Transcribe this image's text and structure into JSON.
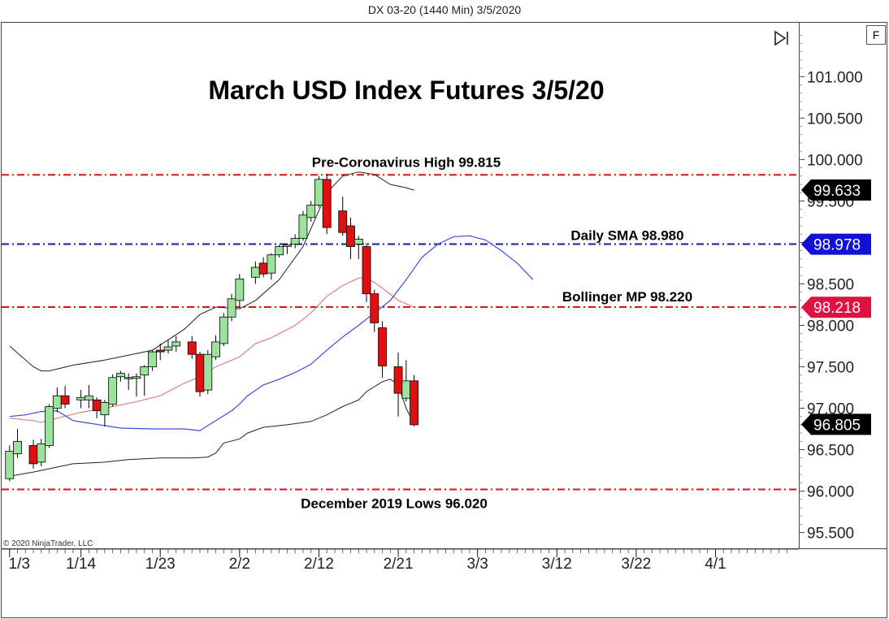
{
  "header": {
    "instrument": "DX 03-20 (1440 Min)  3/5/2020"
  },
  "controls": {
    "format_button": "F",
    "skip_icon": "skip-to-end-icon"
  },
  "copyright": "© 2020 NinjaTrader, LLC",
  "colors": {
    "up_fill": "#9be29b",
    "down_fill": "#e01010",
    "red_line": "#e01010",
    "blue_line": "#1a1aa8",
    "sma": "#3a4ee0",
    "bollinger_mid": "#e08080",
    "bollinger_band": "#222222"
  },
  "chart_data": {
    "type": "candlestick",
    "title": "March USD Index Futures 3/5/20",
    "y_range": [
      95.3,
      101.65
    ],
    "y_ticks": [
      "101.000",
      "100.500",
      "100.000",
      "99.500",
      "99.000",
      "98.500",
      "98.000",
      "97.500",
      "97.000",
      "96.500",
      "96.000",
      "95.500"
    ],
    "y_tick_values": [
      101.0,
      100.5,
      100.0,
      99.5,
      99.0,
      98.5,
      98.0,
      97.5,
      97.0,
      96.5,
      96.0,
      95.5
    ],
    "x_ticks": [
      {
        "label": "1/3",
        "day": 0
      },
      {
        "label": "1/14",
        "day": 9
      },
      {
        "label": "1/23",
        "day": 19
      },
      {
        "label": "2/2",
        "day": 29
      },
      {
        "label": "2/12",
        "day": 39
      },
      {
        "label": "2/21",
        "day": 49
      },
      {
        "label": "3/3",
        "day": 59
      },
      {
        "label": "3/12",
        "day": 69
      },
      {
        "label": "3/22",
        "day": 79
      },
      {
        "label": "4/1",
        "day": 89
      }
    ],
    "x_range_days": [
      -1,
      99.5
    ],
    "candles": [
      {
        "day": 0,
        "o": 96.15,
        "h": 96.55,
        "l": 96.12,
        "c": 96.48
      },
      {
        "day": 1,
        "o": 96.45,
        "h": 96.75,
        "l": 96.4,
        "c": 96.6
      },
      {
        "day": 3,
        "o": 96.55,
        "h": 96.62,
        "l": 96.27,
        "c": 96.33
      },
      {
        "day": 4,
        "o": 96.35,
        "h": 96.63,
        "l": 96.3,
        "c": 96.57
      },
      {
        "day": 5,
        "o": 96.55,
        "h": 97.05,
        "l": 96.52,
        "c": 97.02
      },
      {
        "day": 6,
        "o": 97.0,
        "h": 97.25,
        "l": 96.95,
        "c": 97.15
      },
      {
        "day": 7,
        "o": 97.15,
        "h": 97.27,
        "l": 97.0,
        "c": 97.05
      },
      {
        "day": 9,
        "o": 97.1,
        "h": 97.22,
        "l": 97.0,
        "c": 97.13
      },
      {
        "day": 10,
        "o": 97.1,
        "h": 97.28,
        "l": 97.0,
        "c": 97.15
      },
      {
        "day": 11,
        "o": 97.1,
        "h": 97.13,
        "l": 96.88,
        "c": 96.97
      },
      {
        "day": 12,
        "o": 96.92,
        "h": 97.1,
        "l": 96.78,
        "c": 97.07
      },
      {
        "day": 13,
        "o": 97.05,
        "h": 97.41,
        "l": 97.02,
        "c": 97.37
      },
      {
        "day": 14,
        "o": 97.38,
        "h": 97.45,
        "l": 97.32,
        "c": 97.42
      },
      {
        "day": 15,
        "o": 97.36,
        "h": 97.42,
        "l": 97.22,
        "c": 97.37
      },
      {
        "day": 16,
        "o": 97.36,
        "h": 97.42,
        "l": 97.14,
        "c": 97.38
      },
      {
        "day": 17,
        "o": 97.4,
        "h": 97.52,
        "l": 97.15,
        "c": 97.5
      },
      {
        "day": 18,
        "o": 97.5,
        "h": 97.7,
        "l": 97.45,
        "c": 97.68
      },
      {
        "day": 19,
        "o": 97.7,
        "h": 97.78,
        "l": 97.58,
        "c": 97.68
      },
      {
        "day": 20,
        "o": 97.7,
        "h": 97.82,
        "l": 97.66,
        "c": 97.74
      },
      {
        "day": 21,
        "o": 97.75,
        "h": 97.87,
        "l": 97.68,
        "c": 97.8
      },
      {
        "day": 23,
        "o": 97.8,
        "h": 97.87,
        "l": 97.6,
        "c": 97.65
      },
      {
        "day": 24,
        "o": 97.65,
        "h": 97.68,
        "l": 97.14,
        "c": 97.2
      },
      {
        "day": 25,
        "o": 97.22,
        "h": 97.7,
        "l": 97.17,
        "c": 97.65
      },
      {
        "day": 26,
        "o": 97.62,
        "h": 97.88,
        "l": 97.58,
        "c": 97.8
      },
      {
        "day": 27,
        "o": 97.78,
        "h": 98.15,
        "l": 97.75,
        "c": 98.1
      },
      {
        "day": 28,
        "o": 98.1,
        "h": 98.38,
        "l": 98.05,
        "c": 98.32
      },
      {
        "day": 29,
        "o": 98.3,
        "h": 98.62,
        "l": 98.22,
        "c": 98.56
      },
      {
        "day": 31,
        "o": 98.58,
        "h": 98.77,
        "l": 98.5,
        "c": 98.7
      },
      {
        "day": 32,
        "o": 98.75,
        "h": 98.82,
        "l": 98.58,
        "c": 98.62
      },
      {
        "day": 33,
        "o": 98.63,
        "h": 98.87,
        "l": 98.55,
        "c": 98.85
      },
      {
        "day": 34,
        "o": 98.85,
        "h": 98.97,
        "l": 98.82,
        "c": 98.95
      },
      {
        "day": 35,
        "o": 98.95,
        "h": 98.99,
        "l": 98.86,
        "c": 98.97
      },
      {
        "day": 36,
        "o": 98.98,
        "h": 99.1,
        "l": 98.93,
        "c": 99.05
      },
      {
        "day": 37,
        "o": 99.05,
        "h": 99.38,
        "l": 99.02,
        "c": 99.33
      },
      {
        "day": 38,
        "o": 99.3,
        "h": 99.5,
        "l": 99.25,
        "c": 99.45
      },
      {
        "day": 39,
        "o": 99.45,
        "h": 99.8,
        "l": 99.42,
        "c": 99.76
      },
      {
        "day": 40,
        "o": 99.76,
        "h": 99.83,
        "l": 99.1,
        "c": 99.18
      },
      {
        "day": 42,
        "o": 99.38,
        "h": 99.55,
        "l": 99.08,
        "c": 99.12
      },
      {
        "day": 43,
        "o": 99.2,
        "h": 99.3,
        "l": 98.8,
        "c": 98.95
      },
      {
        "day": 44,
        "o": 98.98,
        "h": 99.08,
        "l": 98.8,
        "c": 99.04
      },
      {
        "day": 45,
        "o": 98.95,
        "h": 98.99,
        "l": 98.28,
        "c": 98.38
      },
      {
        "day": 46,
        "o": 98.38,
        "h": 98.43,
        "l": 97.92,
        "c": 98.03
      },
      {
        "day": 47,
        "o": 97.97,
        "h": 98.05,
        "l": 97.37,
        "c": 97.51
      },
      {
        "day": 49,
        "o": 97.5,
        "h": 97.67,
        "l": 96.9,
        "c": 97.18
      },
      {
        "day": 50,
        "o": 97.12,
        "h": 97.58,
        "l": 97.08,
        "c": 97.33
      },
      {
        "day": 51,
        "o": 97.33,
        "h": 97.4,
        "l": 96.78,
        "c": 96.8
      }
    ],
    "overlays": {
      "bollinger_upper": [
        [
          0,
          97.75
        ],
        [
          3,
          97.5
        ],
        [
          4,
          97.45
        ],
        [
          5,
          97.45
        ],
        [
          8,
          97.52
        ],
        [
          12,
          97.58
        ],
        [
          14,
          97.62
        ],
        [
          18,
          97.7
        ],
        [
          22,
          97.95
        ],
        [
          24,
          98.13
        ],
        [
          26,
          98.22
        ],
        [
          29,
          98.2
        ],
        [
          31,
          98.3
        ],
        [
          34,
          98.55
        ],
        [
          37,
          98.95
        ],
        [
          40,
          99.6
        ],
        [
          42,
          99.8
        ],
        [
          44,
          99.85
        ],
        [
          46,
          99.82
        ],
        [
          48,
          99.7
        ],
        [
          50,
          99.66
        ],
        [
          51,
          99.63
        ]
      ],
      "bollinger_middle": [
        [
          0,
          96.88
        ],
        [
          3,
          96.85
        ],
        [
          4,
          96.83
        ],
        [
          6,
          96.88
        ],
        [
          9,
          96.95
        ],
        [
          12,
          97.0
        ],
        [
          16,
          97.08
        ],
        [
          19,
          97.15
        ],
        [
          22,
          97.3
        ],
        [
          24,
          97.38
        ],
        [
          26,
          97.5
        ],
        [
          29,
          97.62
        ],
        [
          31,
          97.78
        ],
        [
          33,
          97.85
        ],
        [
          36,
          98.0
        ],
        [
          38,
          98.15
        ],
        [
          40,
          98.35
        ],
        [
          42,
          98.48
        ],
        [
          44,
          98.57
        ],
        [
          45,
          98.58
        ],
        [
          47,
          98.45
        ],
        [
          49,
          98.3
        ],
        [
          51,
          98.22
        ]
      ],
      "bollinger_lower": [
        [
          0,
          96.18
        ],
        [
          3,
          96.23
        ],
        [
          5,
          96.27
        ],
        [
          8,
          96.33
        ],
        [
          12,
          96.35
        ],
        [
          15,
          96.38
        ],
        [
          19,
          96.4
        ],
        [
          23,
          96.4
        ],
        [
          25,
          96.41
        ],
        [
          26,
          96.46
        ],
        [
          27,
          96.58
        ],
        [
          29,
          96.63
        ],
        [
          30,
          96.7
        ],
        [
          32,
          96.77
        ],
        [
          35,
          96.8
        ],
        [
          38,
          96.84
        ],
        [
          40,
          96.92
        ],
        [
          42,
          97.02
        ],
        [
          44,
          97.1
        ],
        [
          45,
          97.2
        ],
        [
          47,
          97.32
        ],
        [
          48,
          97.35
        ],
        [
          49,
          97.28
        ],
        [
          50,
          97.0
        ],
        [
          51,
          96.81
        ]
      ],
      "daily_sma": [
        [
          0,
          96.9
        ],
        [
          2,
          96.92
        ],
        [
          4,
          96.96
        ],
        [
          6,
          96.97
        ],
        [
          8,
          96.85
        ],
        [
          10,
          96.82
        ],
        [
          14,
          96.76
        ],
        [
          18,
          96.75
        ],
        [
          22,
          96.75
        ],
        [
          24,
          96.73
        ],
        [
          26,
          96.85
        ],
        [
          28,
          96.97
        ],
        [
          29,
          97.05
        ],
        [
          30,
          97.15
        ],
        [
          32,
          97.28
        ],
        [
          34,
          97.35
        ],
        [
          36,
          97.43
        ],
        [
          38,
          97.53
        ],
        [
          40,
          97.7
        ],
        [
          42,
          97.86
        ],
        [
          44,
          98.0
        ],
        [
          46,
          98.15
        ],
        [
          48,
          98.3
        ],
        [
          50,
          98.55
        ],
        [
          52,
          98.82
        ],
        [
          54,
          98.98
        ],
        [
          56,
          99.07
        ],
        [
          58,
          99.08
        ],
        [
          60,
          99.03
        ],
        [
          62,
          98.9
        ],
        [
          64,
          98.75
        ],
        [
          66,
          98.55
        ]
      ]
    },
    "horizontal_lines": [
      {
        "label": "Pre-Coronavirus High 99.815",
        "value": 99.815,
        "color": "#e01010"
      },
      {
        "label": "Daily SMA 98.980",
        "value": 98.98,
        "color": "#1a1aa8"
      },
      {
        "label": "Bollinger MP 98.220",
        "value": 98.22,
        "color": "#e01010"
      },
      {
        "label": "December 2019 Lows 96.020",
        "value": 96.02,
        "color": "#e01010"
      }
    ],
    "price_markers": [
      {
        "label": "99.633",
        "value": 99.633,
        "color": "#000000"
      },
      {
        "label": "98.978",
        "value": 98.978,
        "color": "#1010d8"
      },
      {
        "label": "98.218",
        "value": 98.218,
        "color": "#e01040"
      },
      {
        "label": "96.805",
        "value": 96.805,
        "color": "#000000"
      }
    ]
  }
}
